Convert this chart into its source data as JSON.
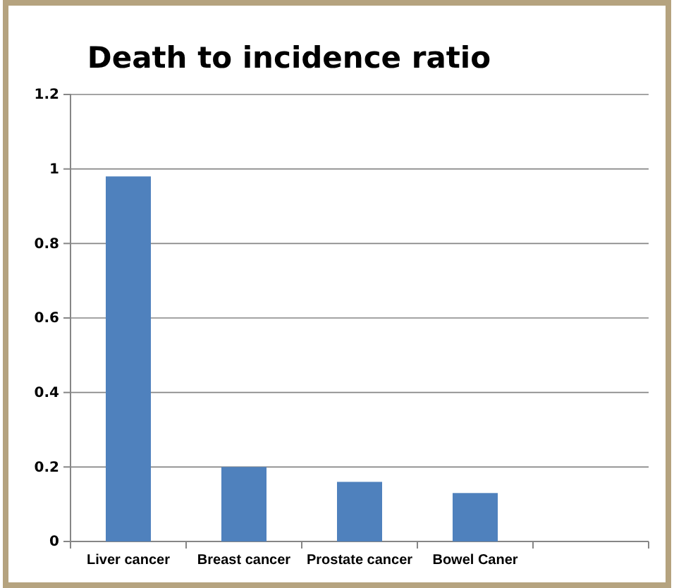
{
  "chart_data": {
    "type": "bar",
    "title": "Death to incidence ratio",
    "categories": [
      "Liver cancer",
      "Breast cancer",
      "Prostate cancer",
      "Bowel Caner",
      null
    ],
    "values": [
      0.98,
      0.2,
      0.16,
      0.13,
      null
    ],
    "color": "#4f81bd",
    "ylim": [
      0,
      1.2
    ],
    "yticks": [
      0,
      {
        "value": 0.2,
        "label": "0.2"
      },
      {
        "value": 0.4,
        "label": "0.4"
      },
      {
        "value": 0.6,
        "label": "0.6"
      },
      {
        "value": 0.8,
        "label": "0.8"
      },
      1,
      {
        "value": 1.2,
        "label": "1.2"
      }
    ],
    "grid": "y"
  }
}
